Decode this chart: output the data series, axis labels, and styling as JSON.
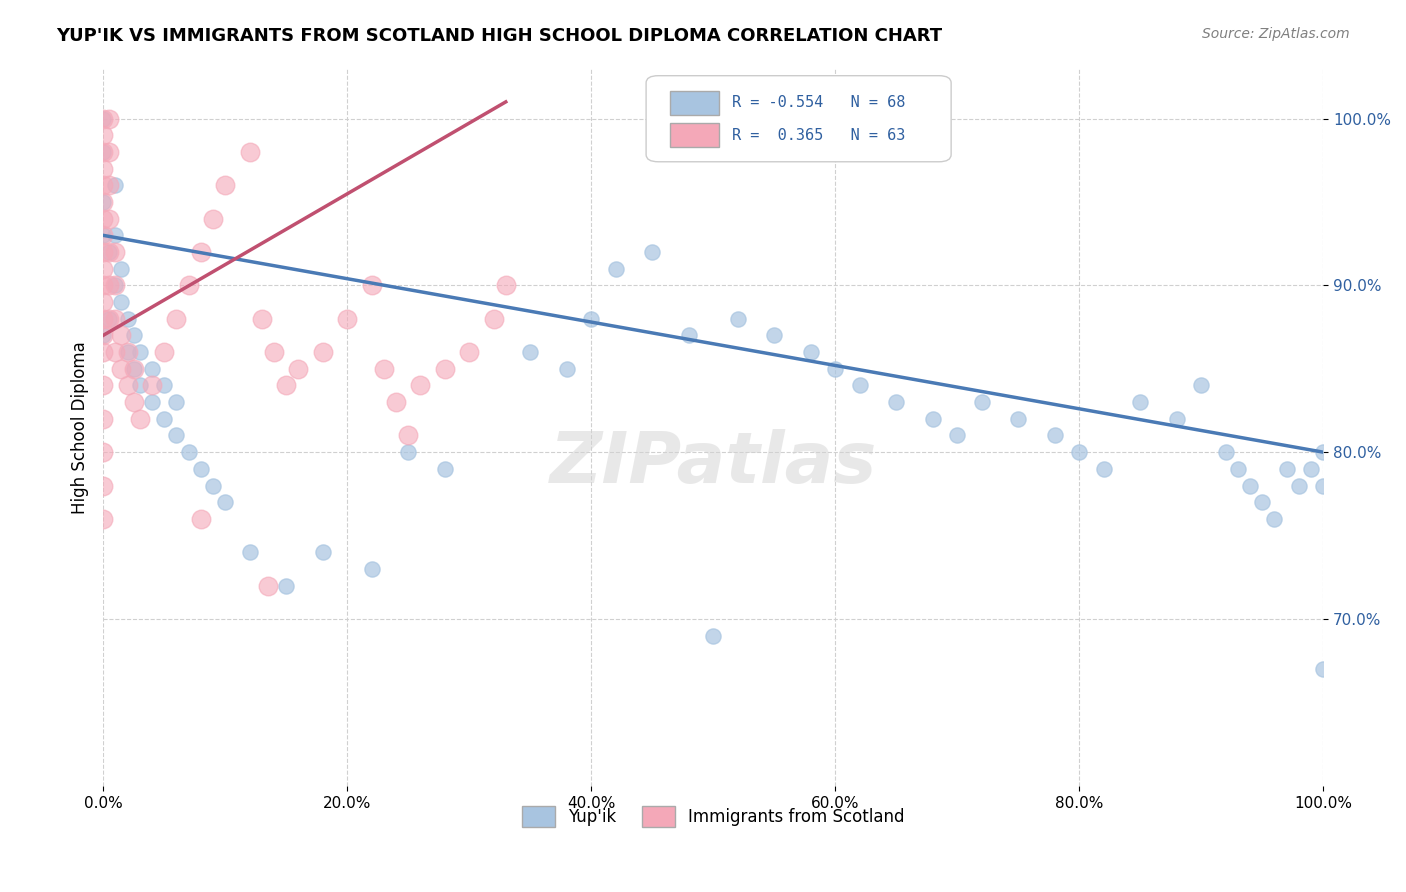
{
  "title": "YUP'IK VS IMMIGRANTS FROM SCOTLAND HIGH SCHOOL DIPLOMA CORRELATION CHART",
  "source_text": "Source: ZipAtlas.com",
  "xlabel": "",
  "ylabel": "High School Diploma",
  "xlim": [
    0.0,
    1.0
  ],
  "ylim": [
    0.6,
    1.03
  ],
  "x_tick_labels": [
    "0.0%",
    "20.0%",
    "40.0%",
    "60.0%",
    "80.0%",
    "100.0%"
  ],
  "x_tick_positions": [
    0.0,
    0.2,
    0.4,
    0.6,
    0.8,
    1.0
  ],
  "y_tick_labels": [
    "70.0%",
    "80.0%",
    "90.0%",
    "100.0%"
  ],
  "y_tick_positions": [
    0.7,
    0.8,
    0.9,
    1.0
  ],
  "legend_labels": [
    "Yup'ik",
    "Immigrants from Scotland"
  ],
  "blue_R": -0.554,
  "blue_N": 68,
  "pink_R": 0.365,
  "pink_N": 63,
  "blue_color": "#a8c4e0",
  "pink_color": "#f4a8b8",
  "blue_line_color": "#4a7ab5",
  "pink_line_color": "#c05070",
  "watermark": "ZIPatlas",
  "blue_scatter_x": [
    0.0,
    0.0,
    0.0,
    0.0,
    0.0,
    0.005,
    0.005,
    0.01,
    0.01,
    0.01,
    0.015,
    0.015,
    0.02,
    0.02,
    0.025,
    0.025,
    0.03,
    0.03,
    0.04,
    0.04,
    0.05,
    0.05,
    0.06,
    0.06,
    0.07,
    0.08,
    0.09,
    0.1,
    0.12,
    0.15,
    0.18,
    0.22,
    0.25,
    0.28,
    0.35,
    0.38,
    0.4,
    0.42,
    0.45,
    0.48,
    0.5,
    0.52,
    0.55,
    0.58,
    0.6,
    0.62,
    0.65,
    0.68,
    0.7,
    0.72,
    0.75,
    0.78,
    0.8,
    0.82,
    0.85,
    0.88,
    0.9,
    0.92,
    0.93,
    0.94,
    0.95,
    0.96,
    0.97,
    0.98,
    0.99,
    1.0,
    1.0,
    1.0
  ],
  "blue_scatter_y": [
    0.87,
    0.93,
    0.95,
    0.98,
    1.0,
    0.88,
    0.92,
    0.9,
    0.93,
    0.96,
    0.89,
    0.91,
    0.86,
    0.88,
    0.85,
    0.87,
    0.84,
    0.86,
    0.83,
    0.85,
    0.82,
    0.84,
    0.81,
    0.83,
    0.8,
    0.79,
    0.78,
    0.77,
    0.74,
    0.72,
    0.74,
    0.73,
    0.8,
    0.79,
    0.86,
    0.85,
    0.88,
    0.91,
    0.92,
    0.87,
    0.69,
    0.88,
    0.87,
    0.86,
    0.85,
    0.84,
    0.83,
    0.82,
    0.81,
    0.83,
    0.82,
    0.81,
    0.8,
    0.79,
    0.83,
    0.82,
    0.84,
    0.8,
    0.79,
    0.78,
    0.77,
    0.76,
    0.79,
    0.78,
    0.79,
    0.8,
    0.78,
    0.67
  ],
  "pink_scatter_x": [
    0.0,
    0.0,
    0.0,
    0.0,
    0.0,
    0.0,
    0.0,
    0.0,
    0.0,
    0.0,
    0.0,
    0.0,
    0.0,
    0.0,
    0.0,
    0.0,
    0.0,
    0.0,
    0.0,
    0.0,
    0.005,
    0.005,
    0.005,
    0.005,
    0.005,
    0.005,
    0.005,
    0.01,
    0.01,
    0.01,
    0.01,
    0.015,
    0.015,
    0.02,
    0.02,
    0.025,
    0.025,
    0.03,
    0.04,
    0.05,
    0.06,
    0.07,
    0.08,
    0.08,
    0.09,
    0.1,
    0.12,
    0.13,
    0.14,
    0.15,
    0.16,
    0.18,
    0.2,
    0.22,
    0.23,
    0.24,
    0.25,
    0.26,
    0.28,
    0.3,
    0.32,
    0.33,
    0.135
  ],
  "pink_scatter_y": [
    0.87,
    0.89,
    0.91,
    0.93,
    0.95,
    0.97,
    0.99,
    1.0,
    0.98,
    0.96,
    0.94,
    0.92,
    0.9,
    0.88,
    0.86,
    0.84,
    0.82,
    0.8,
    0.78,
    0.76,
    0.88,
    0.9,
    0.92,
    0.94,
    0.96,
    0.98,
    1.0,
    0.86,
    0.88,
    0.9,
    0.92,
    0.85,
    0.87,
    0.84,
    0.86,
    0.83,
    0.85,
    0.82,
    0.84,
    0.86,
    0.88,
    0.9,
    0.92,
    0.76,
    0.94,
    0.96,
    0.98,
    0.88,
    0.86,
    0.84,
    0.85,
    0.86,
    0.88,
    0.9,
    0.85,
    0.83,
    0.81,
    0.84,
    0.85,
    0.86,
    0.88,
    0.9,
    0.72
  ]
}
